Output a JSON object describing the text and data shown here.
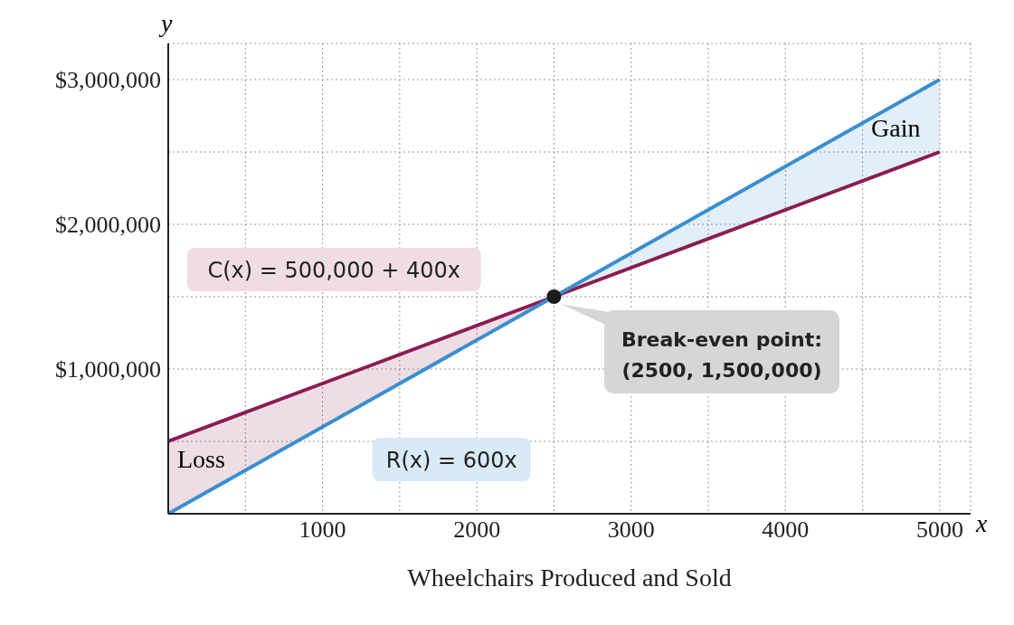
{
  "chart_data": {
    "type": "line",
    "xlabel": "Wheelchairs Produced and Sold",
    "ylabel": "y",
    "xlim": [
      0,
      5200
    ],
    "ylim": [
      0,
      3250000
    ],
    "xticks": [
      {
        "value": 500,
        "label": null
      },
      {
        "value": 1000,
        "label": "1000"
      },
      {
        "value": 1500,
        "label": null
      },
      {
        "value": 2000,
        "label": "2000"
      },
      {
        "value": 2500,
        "label": null
      },
      {
        "value": 3000,
        "label": "3000"
      },
      {
        "value": 3500,
        "label": null
      },
      {
        "value": 4000,
        "label": "4000"
      },
      {
        "value": 4500,
        "label": null
      },
      {
        "value": 5000,
        "label": "5000"
      }
    ],
    "yticks": [
      {
        "value": 500000,
        "label": null
      },
      {
        "value": 1000000,
        "label": "$1,000,000"
      },
      {
        "value": 1500000,
        "label": null
      },
      {
        "value": 2000000,
        "label": "$2,000,000"
      },
      {
        "value": 2500000,
        "label": null
      },
      {
        "value": 3000000,
        "label": "$3,000,000"
      }
    ],
    "grid": true,
    "line_style": "solid",
    "marker": "none",
    "series": [
      {
        "name": "C(x) = 500,000 + 400x",
        "color": "#8b1c52",
        "x": [
          0,
          1250,
          2500,
          3750,
          5000
        ],
        "values": [
          500000,
          1000000,
          1500000,
          2000000,
          2500000
        ],
        "lower": [
          0,
          750000,
          1500000,
          null,
          null
        ],
        "upper": [
          500000,
          1000000,
          1500000,
          null,
          null
        ]
      },
      {
        "name": "R(x) = 600x",
        "color": "#3a8fd0",
        "x": [
          0,
          1250,
          2500,
          3750,
          5000
        ],
        "values": [
          0,
          750000,
          1500000,
          2250000,
          3000000
        ],
        "lower": [
          null,
          null,
          1500000,
          2000000,
          2500000
        ],
        "upper": [
          null,
          null,
          1500000,
          2250000,
          3000000
        ]
      },
      {
        "type": "scatter",
        "color": "#1a1a1a",
        "x": [
          2500
        ],
        "values": [
          1500000
        ],
        "marker": "circle"
      }
    ],
    "annotations": [
      "Break-even point: (2500, 1,500,000)",
      "Loss",
      "Gain",
      "x"
    ]
  }
}
